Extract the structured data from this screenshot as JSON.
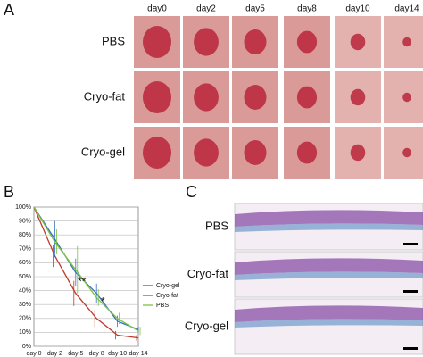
{
  "panel_a": {
    "label": "A",
    "columns": [
      "day0",
      "day2",
      "day5",
      "day8",
      "day10",
      "day14"
    ],
    "rows": [
      "PBS",
      "Cryo-fat",
      "Cryo-gel"
    ]
  },
  "panel_b": {
    "label": "B"
  },
  "panel_c": {
    "label": "C",
    "rows": [
      "PBS",
      "Cryo-fat",
      "Cryo-gel"
    ]
  },
  "chart_data": {
    "type": "line",
    "categories": [
      "day 0",
      "day 2",
      "day 5",
      "day 8",
      "day 10",
      "day 14"
    ],
    "series": [
      {
        "name": "Cryo-gel",
        "color": "#c0392b",
        "values": [
          100,
          65,
          38,
          20,
          8,
          6
        ],
        "errors": [
          0,
          8,
          9,
          6,
          3,
          2
        ]
      },
      {
        "name": "Cryo-fat",
        "color": "#3a6fc4",
        "values": [
          100,
          77,
          53,
          38,
          18,
          12
        ],
        "errors": [
          0,
          13,
          10,
          7,
          4,
          2
        ]
      },
      {
        "name": "PBS",
        "color": "#7cc242",
        "values": [
          100,
          75,
          55,
          35,
          20,
          11
        ],
        "errors": [
          0,
          9,
          17,
          6,
          4,
          3
        ]
      }
    ],
    "ylim": [
      0,
      100
    ],
    "yticks": [
      {
        "value": 0,
        "label": "0%"
      },
      {
        "value": 10,
        "label": "10%"
      },
      {
        "value": 20,
        "label": "20%"
      },
      {
        "value": 30,
        "label": "30%"
      },
      {
        "value": 40,
        "label": "40%"
      },
      {
        "value": 50,
        "label": "50%"
      },
      {
        "value": 60,
        "label": "60%"
      },
      {
        "value": 70,
        "label": "70%"
      },
      {
        "value": 80,
        "label": "80%"
      },
      {
        "value": 90,
        "label": "90%"
      },
      {
        "value": 100,
        "label": "100%"
      }
    ],
    "grid": true,
    "legend": "right",
    "annotations": [
      "**",
      "*"
    ]
  }
}
